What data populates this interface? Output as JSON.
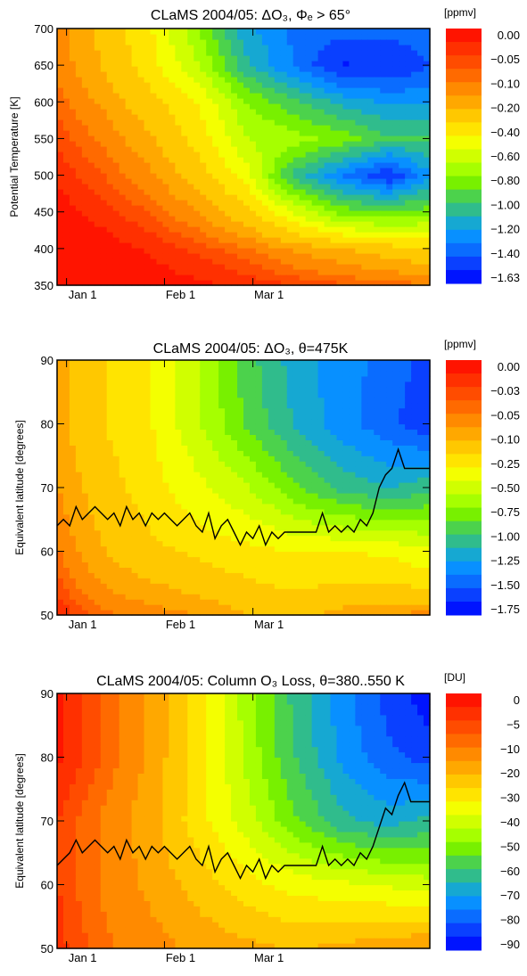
{
  "palette": [
    "#ff1400",
    "#ff3000",
    "#ff4c00",
    "#ff6a00",
    "#ff8a00",
    "#ffa800",
    "#ffc800",
    "#ffe400",
    "#f4ff00",
    "#d0ff00",
    "#a6ff00",
    "#78f000",
    "#4cd24c",
    "#30bc8c",
    "#16a8d2",
    "#0890ff",
    "#0a6cff",
    "#0a40ff",
    "#0014ff"
  ],
  "chart_data": [
    {
      "type": "heatmap",
      "title": "CLaMS 2004/05:  ΔO₃, Φₑ > 65°",
      "xlabel": "",
      "ylabel": "Potential Temperature [K]",
      "xlim": [
        0,
        118
      ],
      "ylim": [
        350,
        700
      ],
      "x_ticks": [
        {
          "x": 3,
          "label": "Jan 1"
        },
        {
          "x": 34,
          "label": "Feb 1"
        },
        {
          "x": 62,
          "label": "Mar 1"
        }
      ],
      "y_ticks": [
        350,
        400,
        450,
        500,
        550,
        600,
        650,
        700
      ],
      "colorbar": {
        "unit": "[ppmv]",
        "levels": [
          "0.00",
          "−0.05",
          "−0.10",
          "−0.20",
          "−0.40",
          "−0.60",
          "−0.80",
          "−1.00",
          "−1.20",
          "−1.40",
          "−1.63"
        ]
      },
      "field": {
        "x": [
          0,
          15,
          30,
          45,
          60,
          75,
          90,
          105,
          118
        ],
        "y": [
          350,
          400,
          450,
          500,
          550,
          600,
          650,
          700
        ],
        "z": [
          [
            0.0,
            0.0,
            -0.01,
            -0.02,
            -0.03,
            -0.05,
            -0.07,
            -0.09,
            -0.1
          ],
          [
            0.0,
            -0.01,
            -0.03,
            -0.06,
            -0.1,
            -0.17,
            -0.22,
            -0.28,
            -0.32
          ],
          [
            -0.01,
            -0.04,
            -0.08,
            -0.16,
            -0.3,
            -0.55,
            -0.8,
            -0.85,
            -0.8
          ],
          [
            -0.03,
            -0.08,
            -0.15,
            -0.28,
            -0.5,
            -1.0,
            -1.28,
            -1.5,
            -1.2
          ],
          [
            -0.06,
            -0.12,
            -0.22,
            -0.38,
            -0.65,
            -0.7,
            -0.8,
            -0.95,
            -0.95
          ],
          [
            -0.09,
            -0.18,
            -0.3,
            -0.45,
            -0.75,
            -0.95,
            -1.1,
            -1.2,
            -1.2
          ],
          [
            -0.12,
            -0.24,
            -0.4,
            -0.65,
            -1.05,
            -1.3,
            -1.52,
            -1.5,
            -1.4
          ],
          [
            -0.14,
            -0.26,
            -0.44,
            -0.75,
            -1.15,
            -1.3,
            -1.35,
            -1.35,
            -1.3
          ]
        ]
      }
    },
    {
      "type": "heatmap",
      "title": "CLaMS 2004/05:  ΔO₃, θ=475K",
      "xlabel": "",
      "ylabel": "Equivalent latitude [degrees]",
      "xlim": [
        0,
        118
      ],
      "ylim": [
        50,
        90
      ],
      "x_ticks": [
        {
          "x": 3,
          "label": "Jan 1"
        },
        {
          "x": 34,
          "label": "Feb 1"
        },
        {
          "x": 62,
          "label": "Mar 1"
        }
      ],
      "y_ticks": [
        50,
        60,
        70,
        80,
        90
      ],
      "colorbar": {
        "unit": "[ppmv]",
        "levels": [
          "0.00",
          "−0.03",
          "−0.05",
          "−0.10",
          "−0.25",
          "−0.50",
          "−0.75",
          "−1.00",
          "−1.25",
          "−1.50",
          "−1.75"
        ]
      },
      "field": {
        "x": [
          0,
          15,
          30,
          45,
          60,
          75,
          90,
          105,
          118
        ],
        "y": [
          50,
          60,
          70,
          80,
          90
        ],
        "z": [
          [
            -0.02,
            -0.05,
            -0.06,
            -0.08,
            -0.12,
            -0.14,
            -0.1,
            -0.08,
            -0.06
          ],
          [
            -0.05,
            -0.12,
            -0.18,
            -0.22,
            -0.26,
            -0.3,
            -0.3,
            -0.32,
            -0.4
          ],
          [
            -0.08,
            -0.16,
            -0.25,
            -0.4,
            -0.55,
            -0.8,
            -1.0,
            -1.1,
            -1.0
          ],
          [
            -0.1,
            -0.2,
            -0.3,
            -0.55,
            -0.85,
            -1.1,
            -1.3,
            -1.45,
            -1.6
          ],
          [
            -0.1,
            -0.2,
            -0.3,
            -0.55,
            -0.9,
            -1.15,
            -1.3,
            -1.4,
            -1.55
          ]
        ]
      },
      "vortex_edge": {
        "name": "",
        "x": [
          0,
          2,
          4,
          6,
          8,
          10,
          12,
          14,
          16,
          18,
          20,
          22,
          24,
          26,
          28,
          30,
          32,
          34,
          36,
          38,
          40,
          42,
          44,
          46,
          48,
          50,
          52,
          54,
          56,
          58,
          60,
          62,
          64,
          66,
          68,
          70,
          72,
          74,
          76,
          78,
          80,
          82,
          84,
          86,
          88,
          90,
          92,
          94,
          96,
          98,
          100,
          102,
          104,
          106,
          108,
          110,
          112,
          114,
          116,
          118
        ],
        "y": [
          64,
          65,
          64,
          67,
          65,
          66,
          67,
          66,
          65,
          66,
          64,
          67,
          65,
          66,
          64,
          66,
          65,
          66,
          65,
          64,
          65,
          66,
          64,
          63,
          66,
          62,
          64,
          65,
          63,
          61,
          63,
          62,
          64,
          61,
          63,
          62,
          63,
          63,
          63,
          63,
          63,
          63,
          66,
          63,
          64,
          63,
          64,
          63,
          65,
          64,
          66,
          70,
          72,
          73,
          76,
          73,
          73,
          73,
          73,
          73
        ]
      }
    },
    {
      "type": "heatmap",
      "title": "CLaMS 2004/05: Column O₃ Loss, θ=380..550 K",
      "xlabel": "",
      "ylabel": "Equivalent latitude [degrees]",
      "xlim": [
        0,
        118
      ],
      "ylim": [
        50,
        90
      ],
      "x_ticks": [
        {
          "x": 3,
          "label": "Jan 1"
        },
        {
          "x": 34,
          "label": "Feb 1"
        },
        {
          "x": 62,
          "label": "Mar 1"
        }
      ],
      "y_ticks": [
        50,
        60,
        70,
        80,
        90
      ],
      "colorbar": {
        "unit": "[DU]",
        "levels": [
          "0",
          "−5",
          "−10",
          "−20",
          "−30",
          "−40",
          "−50",
          "−60",
          "−70",
          "−80",
          "−90"
        ]
      },
      "field": {
        "x": [
          0,
          15,
          30,
          45,
          60,
          75,
          90,
          105,
          118
        ],
        "y": [
          50,
          60,
          70,
          80,
          90
        ],
        "z": [
          [
            -4,
            -10,
            -14,
            -18,
            -20,
            -22,
            -20,
            -18,
            -16
          ],
          [
            -5,
            -12,
            -18,
            -24,
            -30,
            -34,
            -36,
            -38,
            -40
          ],
          [
            -5,
            -12,
            -20,
            -30,
            -40,
            -52,
            -62,
            -66,
            -62
          ],
          [
            -2,
            -8,
            -18,
            -30,
            -44,
            -58,
            -70,
            -78,
            -82
          ],
          [
            -2,
            -8,
            -18,
            -30,
            -45,
            -60,
            -72,
            -82,
            -88
          ]
        ]
      },
      "vortex_edge": {
        "name": "",
        "x": [
          0,
          2,
          4,
          6,
          8,
          10,
          12,
          14,
          16,
          18,
          20,
          22,
          24,
          26,
          28,
          30,
          32,
          34,
          36,
          38,
          40,
          42,
          44,
          46,
          48,
          50,
          52,
          54,
          56,
          58,
          60,
          62,
          64,
          66,
          68,
          70,
          72,
          74,
          76,
          78,
          80,
          82,
          84,
          86,
          88,
          90,
          92,
          94,
          96,
          98,
          100,
          102,
          104,
          106,
          108,
          110,
          112,
          114,
          116,
          118
        ],
        "y": [
          63,
          64,
          65,
          67,
          65,
          66,
          67,
          66,
          65,
          66,
          64,
          67,
          65,
          66,
          64,
          66,
          65,
          66,
          65,
          64,
          65,
          66,
          64,
          63,
          66,
          62,
          64,
          65,
          63,
          61,
          63,
          62,
          64,
          61,
          63,
          62,
          63,
          63,
          63,
          63,
          63,
          63,
          66,
          63,
          64,
          63,
          64,
          63,
          65,
          64,
          66,
          69,
          72,
          71,
          74,
          76,
          73,
          73,
          73,
          73
        ]
      }
    }
  ]
}
